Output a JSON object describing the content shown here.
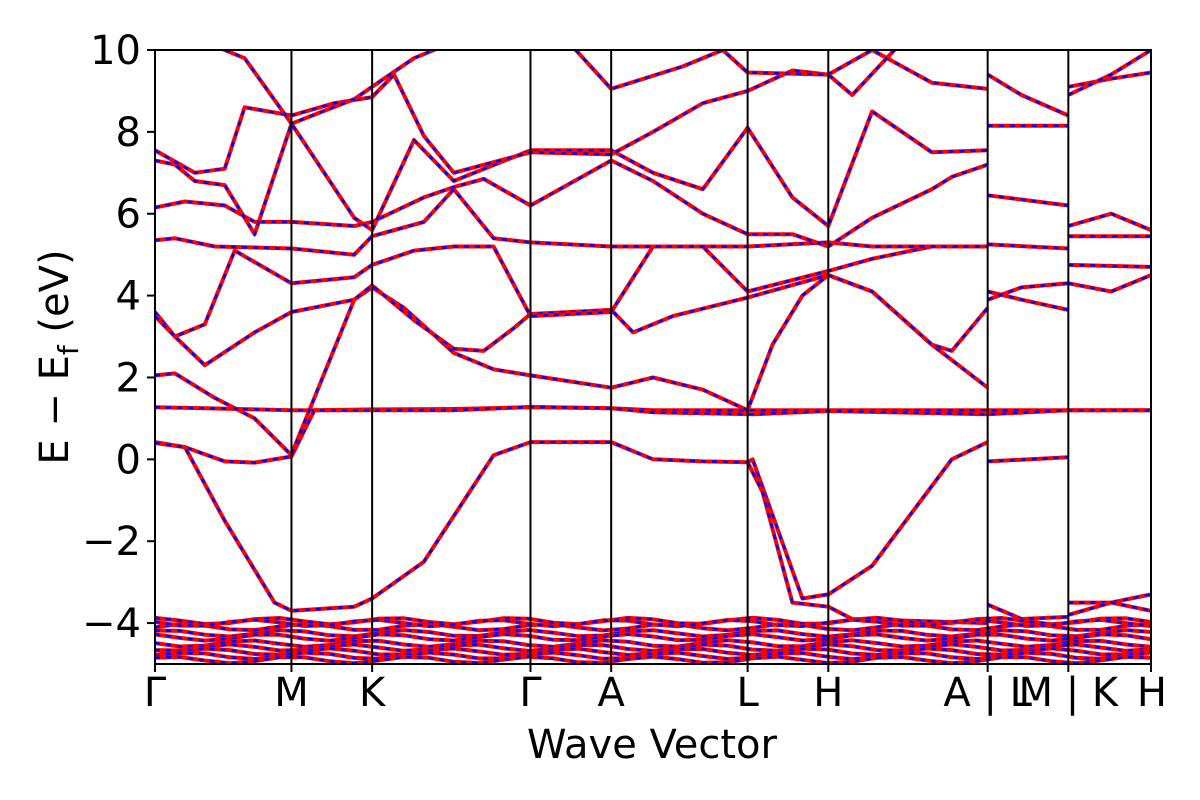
{
  "chart_data": {
    "type": "line",
    "title": "",
    "xlabel": "Wave Vector",
    "ylabel": "E − E",
    "ylabel_subscript": "f",
    "ylabel_unit": " (eV)",
    "ylim": [
      -5,
      10
    ],
    "yticks": [
      10,
      8,
      6,
      4,
      2,
      0,
      -2,
      -4
    ],
    "ytick_labels": [
      "10",
      "8",
      "6",
      "4",
      "2",
      "0",
      "−2",
      "−4"
    ],
    "x_range": [
      0,
      1
    ],
    "kpoints": [
      {
        "label": "Γ",
        "x": 0.0
      },
      {
        "label": "M",
        "x": 0.137
      },
      {
        "label": "K",
        "x": 0.218
      },
      {
        "label": "Γ",
        "x": 0.377
      },
      {
        "label": "A",
        "x": 0.458
      },
      {
        "label": "L",
        "x": 0.595
      },
      {
        "label": "H",
        "x": 0.676
      },
      {
        "label": "A | L",
        "x": 0.836
      },
      {
        "label": "M | K",
        "x": 0.917
      },
      {
        "label": "H",
        "x": 1.0
      }
    ],
    "dashed_overlay_color": "#0000ff",
    "series_color": "#ff0000",
    "series": [
      {
        "points": [
          [
            0,
            0.42
          ],
          [
            0.03,
            0.3
          ],
          [
            0.07,
            -0.05
          ],
          [
            0.1,
            -0.08
          ],
          [
            0.137,
            0.07
          ],
          [
            0.137,
            0.07
          ],
          [
            0.16,
            1.2
          ],
          [
            0.218,
            1.22
          ],
          [
            0.3,
            1.23
          ],
          [
            0.377,
            1.27
          ],
          [
            0.458,
            1.25
          ],
          [
            0.5,
            1.2
          ],
          [
            0.595,
            1.2
          ],
          [
            0.676,
            1.2
          ],
          [
            0.836,
            1.2
          ],
          [
            0.917,
            1.2
          ],
          [
            1.0,
            1.2
          ]
        ]
      },
      {
        "points": [
          [
            0,
            1.27
          ],
          [
            0.05,
            1.25
          ],
          [
            0.1,
            1.22
          ],
          [
            0.137,
            1.2
          ],
          [
            0.218,
            1.2
          ],
          [
            0.3,
            1.2
          ],
          [
            0.377,
            1.28
          ],
          [
            0.458,
            1.25
          ],
          [
            0.5,
            1.15
          ],
          [
            0.6,
            1.1
          ],
          [
            0.676,
            1.18
          ],
          [
            0.836,
            1.1
          ],
          [
            0.917,
            1.2
          ],
          [
            1.0,
            1.2
          ]
        ]
      },
      {
        "points": [
          [
            0,
            0.4
          ],
          [
            0.03,
            0.3
          ],
          [
            0.07,
            -1.5
          ],
          [
            0.12,
            -3.5
          ],
          [
            0.137,
            -3.7
          ],
          [
            0.2,
            -3.6
          ],
          [
            0.218,
            -3.4
          ],
          [
            0.27,
            -2.5
          ],
          [
            0.34,
            0.1
          ],
          [
            0.377,
            0.42
          ],
          [
            0.458,
            0.42
          ],
          [
            0.5,
            0.0
          ],
          [
            0.55,
            -0.05
          ],
          [
            0.595,
            -0.07
          ],
          [
            0.6,
            0.0
          ],
          [
            0.65,
            -3.4
          ],
          [
            0.676,
            -3.3
          ],
          [
            0.72,
            -2.6
          ],
          [
            0.8,
            0.0
          ],
          [
            0.836,
            0.42
          ]
        ]
      },
      {
        "points": [
          [
            0.595,
            -0.07
          ],
          [
            0.61,
            -0.8
          ],
          [
            0.64,
            -3.5
          ],
          [
            0.676,
            -3.6
          ],
          [
            0.7,
            -3.9
          ],
          [
            0.836,
            -4.0
          ]
        ]
      },
      {
        "points": [
          [
            0,
            2.05
          ],
          [
            0.02,
            2.1
          ],
          [
            0.06,
            1.5
          ],
          [
            0.1,
            1.0
          ],
          [
            0.137,
            0.1
          ],
          [
            0.14,
            0.3
          ],
          [
            0.2,
            3.9
          ],
          [
            0.218,
            4.2
          ],
          [
            0.25,
            3.7
          ],
          [
            0.3,
            2.6
          ],
          [
            0.34,
            2.2
          ],
          [
            0.377,
            2.05
          ],
          [
            0.458,
            1.75
          ],
          [
            0.5,
            2.0
          ],
          [
            0.55,
            1.7
          ],
          [
            0.595,
            1.2
          ],
          [
            0.62,
            2.8
          ],
          [
            0.65,
            4.0
          ],
          [
            0.676,
            4.5
          ],
          [
            0.72,
            4.1
          ],
          [
            0.78,
            2.8
          ],
          [
            0.836,
            1.75
          ]
        ]
      },
      {
        "points": [
          [
            0,
            3.6
          ],
          [
            0.02,
            3.0
          ],
          [
            0.05,
            2.3
          ],
          [
            0.1,
            3.1
          ],
          [
            0.137,
            3.6
          ],
          [
            0.2,
            3.9
          ],
          [
            0.218,
            4.25
          ],
          [
            0.26,
            3.4
          ],
          [
            0.3,
            2.7
          ],
          [
            0.33,
            2.65
          ],
          [
            0.36,
            3.2
          ],
          [
            0.377,
            3.55
          ],
          [
            0.458,
            3.65
          ],
          [
            0.48,
            3.1
          ],
          [
            0.52,
            3.5
          ],
          [
            0.595,
            3.95
          ],
          [
            0.676,
            4.5
          ],
          [
            0.72,
            4.1
          ],
          [
            0.78,
            2.8
          ],
          [
            0.8,
            2.65
          ],
          [
            0.836,
            3.7
          ]
        ]
      },
      {
        "points": [
          [
            0,
            3.5
          ],
          [
            0.02,
            3.0
          ],
          [
            0.05,
            3.3
          ],
          [
            0.08,
            5.1
          ],
          [
            0.137,
            4.3
          ],
          [
            0.2,
            4.45
          ],
          [
            0.218,
            4.75
          ],
          [
            0.26,
            5.1
          ],
          [
            0.3,
            5.2
          ],
          [
            0.34,
            5.2
          ],
          [
            0.377,
            3.5
          ],
          [
            0.458,
            3.6
          ],
          [
            0.5,
            5.2
          ],
          [
            0.55,
            5.2
          ],
          [
            0.595,
            4.1
          ],
          [
            0.676,
            4.6
          ],
          [
            0.72,
            4.9
          ],
          [
            0.78,
            5.2
          ],
          [
            0.836,
            5.2
          ]
        ]
      },
      {
        "points": [
          [
            0,
            5.35
          ],
          [
            0.02,
            5.4
          ],
          [
            0.06,
            5.2
          ],
          [
            0.137,
            5.15
          ],
          [
            0.2,
            5.0
          ],
          [
            0.218,
            5.45
          ],
          [
            0.27,
            5.8
          ],
          [
            0.3,
            6.6
          ],
          [
            0.34,
            5.4
          ],
          [
            0.377,
            5.3
          ],
          [
            0.458,
            5.2
          ],
          [
            0.5,
            5.2
          ],
          [
            0.595,
            5.2
          ],
          [
            0.676,
            5.3
          ],
          [
            0.72,
            5.2
          ],
          [
            0.836,
            5.2
          ]
        ]
      },
      {
        "points": [
          [
            0,
            6.15
          ],
          [
            0.03,
            6.3
          ],
          [
            0.07,
            6.2
          ],
          [
            0.1,
            5.8
          ],
          [
            0.137,
            5.8
          ],
          [
            0.2,
            5.7
          ],
          [
            0.218,
            5.8
          ],
          [
            0.27,
            6.4
          ],
          [
            0.3,
            6.65
          ],
          [
            0.33,
            6.85
          ],
          [
            0.377,
            6.2
          ],
          [
            0.458,
            7.3
          ],
          [
            0.5,
            6.8
          ],
          [
            0.55,
            6.0
          ],
          [
            0.595,
            5.5
          ],
          [
            0.64,
            5.5
          ],
          [
            0.676,
            5.2
          ],
          [
            0.72,
            5.9
          ],
          [
            0.78,
            6.6
          ],
          [
            0.8,
            6.9
          ],
          [
            0.836,
            7.2
          ]
        ]
      },
      {
        "points": [
          [
            0,
            7.3
          ],
          [
            0.02,
            7.2
          ],
          [
            0.04,
            6.8
          ],
          [
            0.07,
            6.7
          ],
          [
            0.1,
            5.5
          ],
          [
            0.137,
            8.2
          ],
          [
            0.2,
            5.9
          ],
          [
            0.218,
            5.6
          ],
          [
            0.26,
            7.8
          ],
          [
            0.3,
            6.8
          ],
          [
            0.377,
            7.55
          ],
          [
            0.458,
            7.55
          ],
          [
            0.5,
            7.0
          ],
          [
            0.55,
            6.6
          ],
          [
            0.595,
            8.1
          ],
          [
            0.64,
            6.4
          ],
          [
            0.676,
            5.7
          ],
          [
            0.72,
            8.5
          ],
          [
            0.78,
            7.5
          ],
          [
            0.836,
            7.55
          ]
        ]
      },
      {
        "points": [
          [
            0,
            7.55
          ],
          [
            0.04,
            7.0
          ],
          [
            0.07,
            7.1
          ],
          [
            0.09,
            8.6
          ],
          [
            0.137,
            8.4
          ],
          [
            0.18,
            8.7
          ],
          [
            0.218,
            8.85
          ],
          [
            0.24,
            9.4
          ],
          [
            0.27,
            7.9
          ],
          [
            0.3,
            7.0
          ],
          [
            0.377,
            7.5
          ],
          [
            0.458,
            7.45
          ],
          [
            0.5,
            8.0
          ],
          [
            0.55,
            8.7
          ],
          [
            0.595,
            9.0
          ],
          [
            0.64,
            9.5
          ],
          [
            0.676,
            9.4
          ],
          [
            0.72,
            10.0
          ],
          [
            0.78,
            9.2
          ],
          [
            0.836,
            9.05
          ]
        ]
      },
      {
        "points": [
          [
            0.05,
            10.2
          ],
          [
            0.09,
            9.8
          ],
          [
            0.137,
            8.2
          ],
          [
            0.2,
            8.8
          ],
          [
            0.218,
            9.1
          ],
          [
            0.26,
            9.8
          ],
          [
            0.3,
            10.2
          ]
        ]
      },
      {
        "points": [
          [
            0.415,
            10.2
          ],
          [
            0.458,
            9.05
          ],
          [
            0.53,
            9.6
          ],
          [
            0.57,
            10.0
          ],
          [
            0.595,
            9.45
          ],
          [
            0.676,
            9.4
          ],
          [
            0.7,
            8.9
          ],
          [
            0.75,
            10.2
          ]
        ]
      },
      {
        "points": [
          [
            0.836,
            9.4
          ],
          [
            0.87,
            8.9
          ],
          [
            0.917,
            8.4
          ]
        ]
      },
      {
        "points": [
          [
            0.836,
            8.15
          ],
          [
            0.917,
            8.15
          ]
        ]
      },
      {
        "points": [
          [
            0.836,
            6.45
          ],
          [
            0.917,
            6.2
          ]
        ]
      },
      {
        "points": [
          [
            0.836,
            5.25
          ],
          [
            0.917,
            5.15
          ]
        ]
      },
      {
        "points": [
          [
            0.836,
            4.1
          ],
          [
            0.87,
            3.9
          ],
          [
            0.917,
            3.65
          ]
        ]
      },
      {
        "points": [
          [
            0.836,
            3.9
          ],
          [
            0.87,
            4.2
          ],
          [
            0.917,
            4.3
          ]
        ]
      },
      {
        "points": [
          [
            0.836,
            -0.05
          ],
          [
            0.917,
            0.05
          ]
        ]
      },
      {
        "points": [
          [
            0.836,
            -3.55
          ],
          [
            0.87,
            -3.9
          ],
          [
            0.917,
            -3.85
          ]
        ]
      },
      {
        "points": [
          [
            0.917,
            9.1
          ],
          [
            0.96,
            9.3
          ],
          [
            1.0,
            9.45
          ]
        ]
      },
      {
        "points": [
          [
            0.917,
            8.9
          ],
          [
            0.96,
            9.4
          ],
          [
            1.0,
            10.0
          ]
        ]
      },
      {
        "points": [
          [
            0.917,
            5.7
          ],
          [
            0.96,
            6.0
          ],
          [
            1.0,
            5.6
          ]
        ]
      },
      {
        "points": [
          [
            0.917,
            5.45
          ],
          [
            1.0,
            5.45
          ]
        ]
      },
      {
        "points": [
          [
            0.917,
            4.75
          ],
          [
            1.0,
            4.7
          ]
        ]
      },
      {
        "points": [
          [
            0.917,
            4.3
          ],
          [
            0.96,
            4.1
          ],
          [
            1.0,
            4.5
          ]
        ]
      },
      {
        "points": [
          [
            0.917,
            -3.5
          ],
          [
            0.96,
            -3.5
          ],
          [
            1.0,
            -3.3
          ]
        ]
      },
      {
        "points": [
          [
            0.917,
            -3.8
          ],
          [
            0.96,
            -3.5
          ],
          [
            1.0,
            -3.7
          ]
        ]
      }
    ],
    "dense_bands": [
      -4.1,
      -4.25,
      -4.35,
      -4.5,
      -4.6,
      -4.7,
      -4.8,
      -4.9,
      -3.95,
      -4.0
    ]
  }
}
